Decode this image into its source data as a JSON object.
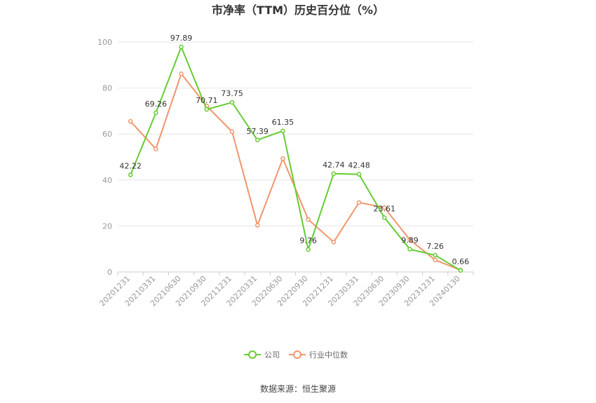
{
  "chart_data": {
    "type": "line",
    "title": "市净率（TTM）历史百分位（%）",
    "categories": [
      "20201231",
      "20210331",
      "20210630",
      "20210930",
      "20211231",
      "20220331",
      "20220630",
      "20220930",
      "20221231",
      "20230331",
      "20230630",
      "20230930",
      "20231231",
      "20240130"
    ],
    "series": [
      {
        "name": "公司",
        "color": "#66cc33",
        "values": [
          42.22,
          69.26,
          97.89,
          70.71,
          73.75,
          57.39,
          61.35,
          9.76,
          42.74,
          42.48,
          23.61,
          9.89,
          7.26,
          0.66
        ],
        "labels": [
          "42.22",
          "69.26",
          "97.89",
          "70.71",
          "73.75",
          "57.39",
          "61.35",
          "9.76",
          "42.74",
          "42.48",
          "23.61",
          "9.89",
          "7.26",
          "0.66"
        ]
      },
      {
        "name": "行业中位数",
        "color": "#f0956a",
        "values": [
          65.5,
          53.5,
          86.2,
          72.2,
          61.0,
          20.3,
          49.3,
          22.8,
          13.0,
          30.2,
          28.0,
          14.0,
          5.2,
          0.8
        ]
      }
    ],
    "ylim": [
      0,
      100
    ],
    "yticks": [
      "0",
      "20",
      "40",
      "60",
      "80",
      "100"
    ],
    "grid": true,
    "legend_position": "bottom"
  },
  "source_text": "数据来源：恒生聚源"
}
